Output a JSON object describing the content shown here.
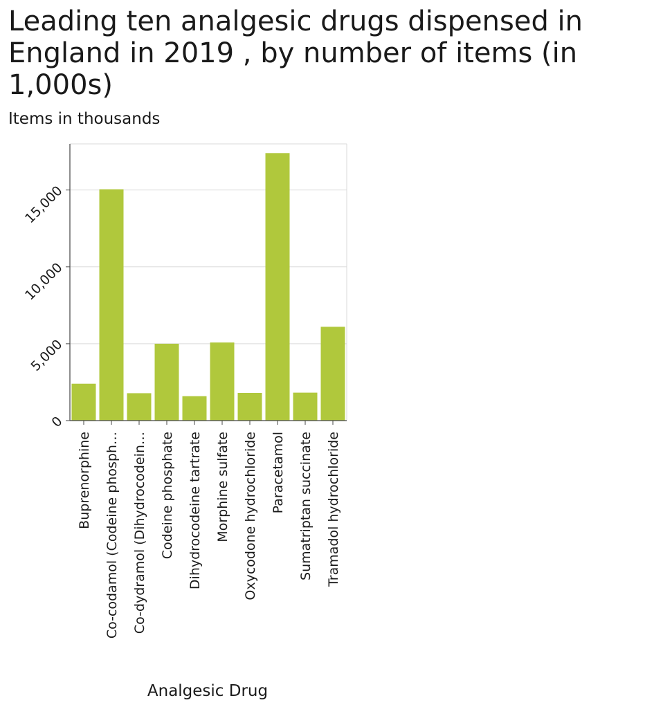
{
  "chart_data": {
    "type": "bar",
    "title": "Leading ten analgesic drugs dispensed in England in 2019 , by number of items (in 1,000s)",
    "xlabel": "Analgesic Drug",
    "ylabel": "Items in thousands",
    "categories": [
      "Buprenorphine",
      "Co-codamol (Codeine phosph…",
      "Co-dydramol (Dihydrocodein…",
      "Codeine phosphate",
      "Dihydrocodeine tartrate",
      "Morphine sulfate",
      "Oxycodone hydrochloride",
      "Paracetamol",
      "Sumatriptan succinate",
      "Tramadol hydrochloride"
    ],
    "values": [
      2400,
      15050,
      1780,
      5000,
      1590,
      5080,
      1800,
      17400,
      1820,
      6100
    ],
    "ylim": [
      0,
      18000
    ],
    "yticks": [
      0,
      5000,
      10000,
      15000
    ],
    "ytick_labels": [
      "0",
      "5,000",
      "10,000",
      "15,000"
    ],
    "grid": true,
    "legend": "none",
    "bar_color": "#b0c83c",
    "grid_color": "#d9d9d9",
    "axis_color": "#444444"
  }
}
